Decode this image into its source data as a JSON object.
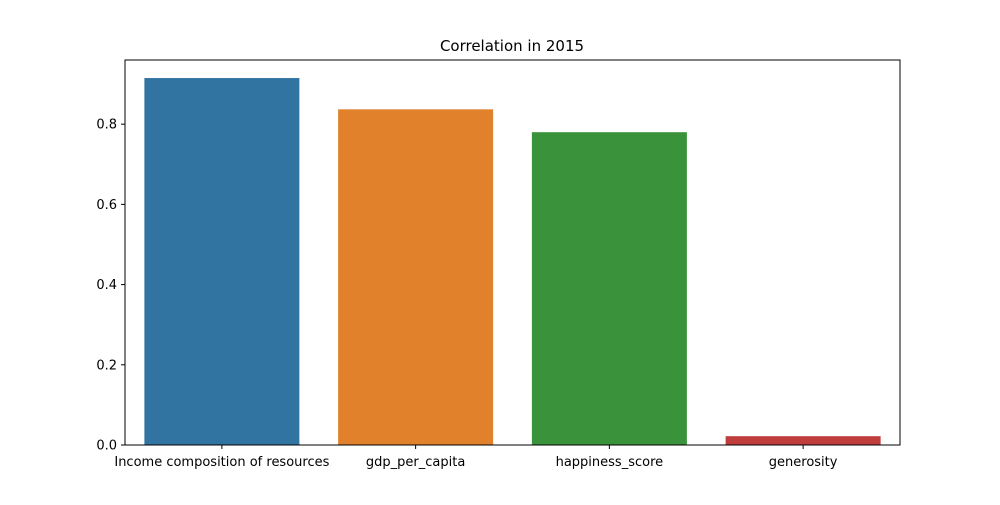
{
  "chart_data": {
    "type": "bar",
    "title": "Correlation in 2015",
    "xlabel": "",
    "ylabel": "",
    "categories": [
      "Income composition of resources",
      "gdp_per_capita",
      "happiness_score",
      "generosity"
    ],
    "values": [
      0.915,
      0.837,
      0.78,
      0.022
    ],
    "colors": [
      "#3274a1",
      "#e1812c",
      "#3a923a",
      "#c03d3e"
    ],
    "ylim": [
      0,
      0.96
    ],
    "yticks": [
      0.0,
      0.2,
      0.4,
      0.6,
      0.8
    ],
    "ytick_labels": [
      "0.0",
      "0.2",
      "0.4",
      "0.6",
      "0.8"
    ],
    "grid": false,
    "legend": "none"
  }
}
